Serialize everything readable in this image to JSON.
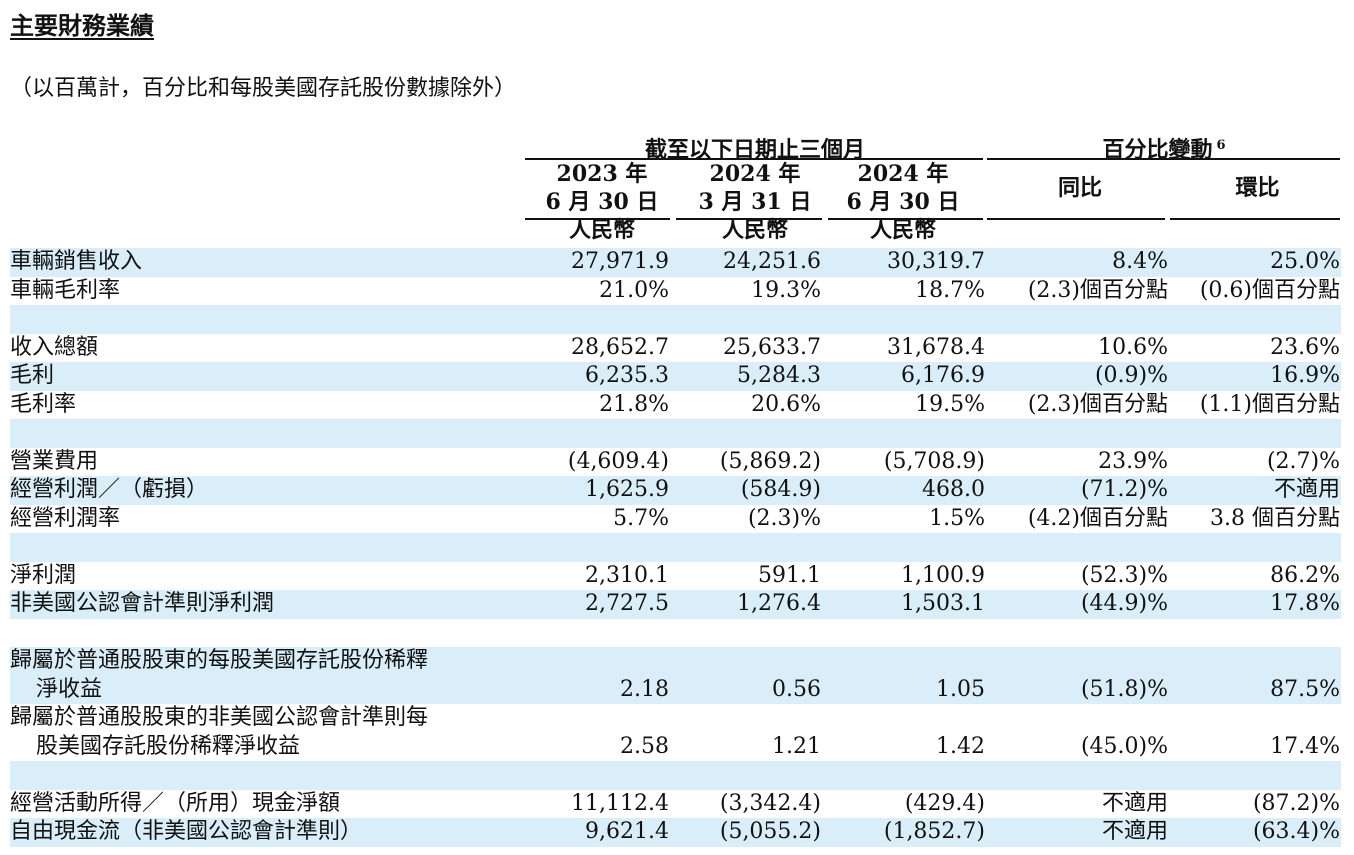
{
  "title": "主要財務業績",
  "subtitle": "（以百萬計，百分比和每股美國存託股份數據除外）",
  "header": {
    "group_period": "截至以下日期止三個月",
    "group_change": "百分比變動",
    "group_change_note": "6",
    "columns": [
      {
        "year": "2023 年",
        "date": "6 月 30 日",
        "currency": "人民幣"
      },
      {
        "year": "2024 年",
        "date": "3 月 31 日",
        "currency": "人民幣"
      },
      {
        "year": "2024 年",
        "date": "6 月 30 日",
        "currency": "人民幣"
      }
    ],
    "yoy": "同比",
    "qoq": "環比"
  },
  "rows": [
    {
      "label": "車輛銷售收入",
      "c1": "27,971.9",
      "c2": "24,251.6",
      "c3": "30,319.7",
      "c4": "8.4%",
      "c5": "25.0%"
    },
    {
      "label": "車輛毛利率",
      "c1": "21.0%",
      "c2": "19.3%",
      "c3": "18.7%",
      "c4": "(2.3)個百分點",
      "c5": "(0.6)個百分點"
    },
    {
      "label": "",
      "c1": "",
      "c2": "",
      "c3": "",
      "c4": "",
      "c5": ""
    },
    {
      "label": "收入總額",
      "c1": "28,652.7",
      "c2": "25,633.7",
      "c3": "31,678.4",
      "c4": "10.6%",
      "c5": "23.6%"
    },
    {
      "label": "毛利",
      "c1": "6,235.3",
      "c2": "5,284.3",
      "c3": "6,176.9",
      "c4": "(0.9)%",
      "c5": "16.9%"
    },
    {
      "label": "毛利率",
      "c1": "21.8%",
      "c2": "20.6%",
      "c3": "19.5%",
      "c4": "(2.3)個百分點",
      "c5": "(1.1)個百分點"
    },
    {
      "label": "",
      "c1": "",
      "c2": "",
      "c3": "",
      "c4": "",
      "c5": ""
    },
    {
      "label": "營業費用",
      "c1": "(4,609.4)",
      "c2": "(5,869.2)",
      "c3": "(5,708.9)",
      "c4": "23.9%",
      "c5": "(2.7)%"
    },
    {
      "label": "經營利潤／（虧損）",
      "c1": "1,625.9",
      "c2": "(584.9)",
      "c3": "468.0",
      "c4": "(71.2)%",
      "c5": "不適用"
    },
    {
      "label": "經營利潤率",
      "c1": "5.7%",
      "c2": "(2.3)%",
      "c3": "1.5%",
      "c4": "(4.2)個百分點",
      "c5": "3.8 個百分點"
    },
    {
      "label": "",
      "c1": "",
      "c2": "",
      "c3": "",
      "c4": "",
      "c5": ""
    },
    {
      "label": "淨利潤",
      "c1": "2,310.1",
      "c2": "591.1",
      "c3": "1,100.9",
      "c4": "(52.3)%",
      "c5": "86.2%"
    },
    {
      "label": "非美國公認會計準則淨利潤",
      "c1": "2,727.5",
      "c2": "1,276.4",
      "c3": "1,503.1",
      "c4": "(44.9)%",
      "c5": "17.8%"
    },
    {
      "label": "",
      "c1": "",
      "c2": "",
      "c3": "",
      "c4": "",
      "c5": ""
    },
    {
      "label": "歸屬於普通股股東的每股美國存託股份稀釋",
      "label2": "淨收益",
      "c1": "2.18",
      "c2": "0.56",
      "c3": "1.05",
      "c4": "(51.8)%",
      "c5": "87.5%"
    },
    {
      "label": "歸屬於普通股股東的非美國公認會計準則每",
      "label2": "股美國存託股份稀釋淨收益",
      "c1": "2.58",
      "c2": "1.21",
      "c3": "1.42",
      "c4": "(45.0)%",
      "c5": "17.4%"
    },
    {
      "label": "",
      "c1": "",
      "c2": "",
      "c3": "",
      "c4": "",
      "c5": ""
    },
    {
      "label": "經營活動所得／（所用）現金淨額",
      "c1": "11,112.4",
      "c2": "(3,342.4)",
      "c3": "(429.4)",
      "c4": "不適用",
      "c5": "(87.2)%"
    },
    {
      "label": "自由現金流（非美國公認會計準則）",
      "c1": "9,621.4",
      "c2": "(5,055.2)",
      "c3": "(1,852.7)",
      "c4": "不適用",
      "c5": "(63.4)%"
    }
  ]
}
